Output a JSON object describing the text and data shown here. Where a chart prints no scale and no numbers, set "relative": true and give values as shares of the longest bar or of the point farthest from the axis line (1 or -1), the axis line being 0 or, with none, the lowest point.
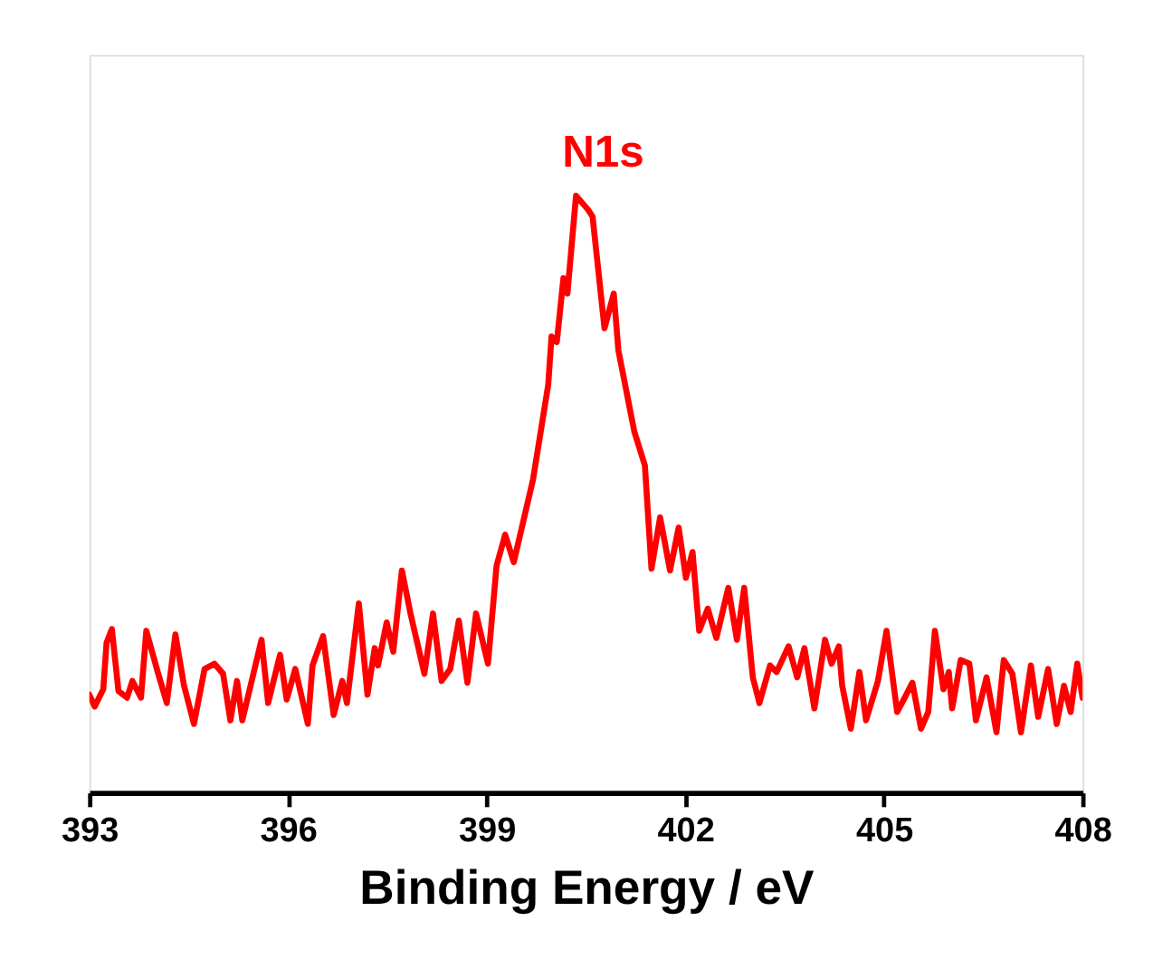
{
  "chart_data": {
    "type": "line",
    "relative": true,
    "xlabel": "Binding Energy / eV",
    "xlim": [
      393,
      408
    ],
    "xticks": [
      393,
      396,
      399,
      402,
      405,
      408
    ],
    "annotations": [
      "N1s"
    ],
    "x": [
      393.0,
      393.08,
      393.21,
      393.26,
      393.34,
      393.44,
      393.57,
      393.65,
      393.78,
      393.86,
      394.04,
      394.17,
      394.3,
      394.43,
      394.58,
      394.74,
      394.89,
      395.02,
      395.13,
      395.23,
      395.31,
      395.6,
      395.7,
      395.88,
      395.98,
      396.11,
      396.3,
      396.37,
      396.53,
      396.69,
      396.82,
      396.89,
      397.07,
      397.2,
      397.31,
      397.36,
      397.49,
      397.59,
      397.72,
      397.85,
      398.06,
      398.19,
      398.32,
      398.45,
      398.58,
      398.71,
      398.84,
      399.02,
      399.15,
      399.28,
      399.41,
      399.7,
      399.93,
      399.98,
      400.06,
      400.16,
      400.22,
      400.35,
      400.53,
      400.6,
      400.78,
      400.92,
      400.99,
      401.23,
      401.39,
      401.49,
      401.62,
      401.77,
      401.9,
      402.01,
      402.11,
      402.21,
      402.34,
      402.47,
      402.65,
      402.78,
      402.89,
      403.02,
      403.12,
      403.28,
      403.38,
      403.56,
      403.69,
      403.8,
      403.95,
      404.11,
      404.21,
      404.32,
      404.37,
      404.5,
      404.63,
      404.73,
      404.91,
      405.04,
      405.2,
      405.3,
      405.43,
      405.56,
      405.67,
      405.77,
      405.9,
      405.98,
      406.03,
      406.16,
      406.29,
      406.39,
      406.55,
      406.7,
      406.81,
      406.94,
      407.07,
      407.22,
      407.33,
      407.48,
      407.61,
      407.72,
      407.82,
      407.92,
      408.0
    ],
    "series": [
      {
        "color": "#ff0000",
        "values": [
          0.164,
          0.144,
          0.173,
          0.251,
          0.274,
          0.17,
          0.159,
          0.187,
          0.159,
          0.271,
          0.199,
          0.15,
          0.265,
          0.179,
          0.115,
          0.207,
          0.216,
          0.199,
          0.121,
          0.187,
          0.121,
          0.256,
          0.15,
          0.231,
          0.156,
          0.207,
          0.115,
          0.213,
          0.262,
          0.13,
          0.187,
          0.15,
          0.317,
          0.164,
          0.242,
          0.213,
          0.285,
          0.236,
          0.372,
          0.3,
          0.199,
          0.3,
          0.187,
          0.207,
          0.288,
          0.184,
          0.3,
          0.216,
          0.38,
          0.432,
          0.386,
          0.524,
          0.683,
          0.764,
          0.755,
          0.862,
          0.836,
          1.0,
          0.977,
          0.965,
          0.778,
          0.836,
          0.741,
          0.605,
          0.548,
          0.375,
          0.461,
          0.372,
          0.444,
          0.36,
          0.403,
          0.271,
          0.308,
          0.259,
          0.343,
          0.256,
          0.343,
          0.193,
          0.15,
          0.213,
          0.202,
          0.245,
          0.193,
          0.242,
          0.141,
          0.256,
          0.216,
          0.245,
          0.179,
          0.107,
          0.202,
          0.121,
          0.187,
          0.271,
          0.135,
          0.156,
          0.184,
          0.107,
          0.135,
          0.271,
          0.173,
          0.202,
          0.141,
          0.222,
          0.216,
          0.121,
          0.193,
          0.101,
          0.222,
          0.199,
          0.101,
          0.213,
          0.127,
          0.207,
          0.115,
          0.179,
          0.135,
          0.216,
          0.159
        ]
      }
    ]
  }
}
